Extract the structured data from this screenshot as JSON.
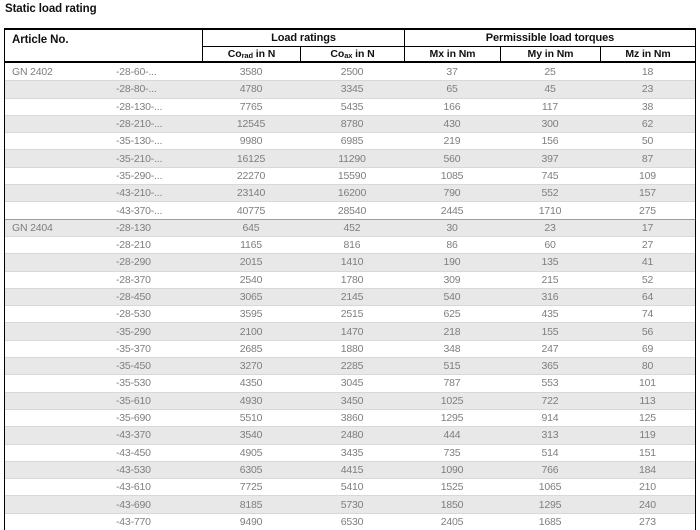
{
  "page_title": "Static load rating",
  "table": {
    "article_header": "Article No.",
    "groups": [
      {
        "label": "Load ratings",
        "span": 2
      },
      {
        "label": "Permissible load torques",
        "span": 3
      }
    ],
    "subcolumns": [
      {
        "base": "Co",
        "sub": "rad",
        "unit": "in N"
      },
      {
        "base": "Co",
        "sub": "ax",
        "unit": "in N"
      },
      {
        "base": "Mx",
        "sub": "",
        "unit": "in Nm"
      },
      {
        "base": "My",
        "sub": "",
        "unit": "in Nm"
      },
      {
        "base": "Mz",
        "sub": "",
        "unit": "in Nm"
      }
    ],
    "sections": [
      {
        "series": "GN 2402",
        "rows": [
          {
            "size": "-28-60-...",
            "values": [
              "3580",
              "2500",
              "37",
              "25",
              "18"
            ]
          },
          {
            "size": "-28-80-...",
            "values": [
              "4780",
              "3345",
              "65",
              "45",
              "23"
            ]
          },
          {
            "size": "-28-130-...",
            "values": [
              "7765",
              "5435",
              "166",
              "117",
              "38"
            ]
          },
          {
            "size": "-28-210-...",
            "values": [
              "12545",
              "8780",
              "430",
              "300",
              "62"
            ]
          },
          {
            "size": "-35-130-...",
            "values": [
              "9980",
              "6985",
              "219",
              "156",
              "50"
            ]
          },
          {
            "size": "-35-210-...",
            "values": [
              "16125",
              "11290",
              "560",
              "397",
              "87"
            ]
          },
          {
            "size": "-35-290-...",
            "values": [
              "22270",
              "15590",
              "1085",
              "745",
              "109"
            ]
          },
          {
            "size": "-43-210-...",
            "values": [
              "23140",
              "16200",
              "790",
              "552",
              "157"
            ]
          },
          {
            "size": "-43-370-...",
            "values": [
              "40775",
              "28540",
              "2445",
              "1710",
              "275"
            ]
          }
        ]
      },
      {
        "series": "GN 2404",
        "rows": [
          {
            "size": "-28-130",
            "values": [
              "645",
              "452",
              "30",
              "23",
              "17"
            ]
          },
          {
            "size": "-28-210",
            "values": [
              "1165",
              "816",
              "86",
              "60",
              "27"
            ]
          },
          {
            "size": "-28-290",
            "values": [
              "2015",
              "1410",
              "190",
              "135",
              "41"
            ]
          },
          {
            "size": "-28-370",
            "values": [
              "2540",
              "1780",
              "309",
              "215",
              "52"
            ]
          },
          {
            "size": "-28-450",
            "values": [
              "3065",
              "2145",
              "540",
              "316",
              "64"
            ]
          },
          {
            "size": "-28-530",
            "values": [
              "3595",
              "2515",
              "625",
              "435",
              "74"
            ]
          },
          {
            "size": "-35-290",
            "values": [
              "2100",
              "1470",
              "218",
              "155",
              "56"
            ]
          },
          {
            "size": "-35-370",
            "values": [
              "2685",
              "1880",
              "348",
              "247",
              "69"
            ]
          },
          {
            "size": "-35-450",
            "values": [
              "3270",
              "2285",
              "515",
              "365",
              "80"
            ]
          },
          {
            "size": "-35-530",
            "values": [
              "4350",
              "3045",
              "787",
              "553",
              "101"
            ]
          },
          {
            "size": "-35-610",
            "values": [
              "4930",
              "3450",
              "1025",
              "722",
              "113"
            ]
          },
          {
            "size": "-35-690",
            "values": [
              "5510",
              "3860",
              "1295",
              "914",
              "125"
            ]
          },
          {
            "size": "-43-370",
            "values": [
              "3540",
              "2480",
              "444",
              "313",
              "119"
            ]
          },
          {
            "size": "-43-450",
            "values": [
              "4905",
              "3435",
              "735",
              "514",
              "151"
            ]
          },
          {
            "size": "-43-530",
            "values": [
              "6305",
              "4415",
              "1090",
              "766",
              "184"
            ]
          },
          {
            "size": "-43-610",
            "values": [
              "7725",
              "5410",
              "1525",
              "1065",
              "210"
            ]
          },
          {
            "size": "-43-690",
            "values": [
              "8185",
              "5730",
              "1850",
              "1295",
              "240"
            ]
          },
          {
            "size": "-43-770",
            "values": [
              "9490",
              "6530",
              "2405",
              "1685",
              "273"
            ]
          }
        ]
      }
    ],
    "colors": {
      "row_alt_bg": "#e8e8e8",
      "data_text": "#7e7e7e",
      "header_text": "#111111",
      "border": "#000000",
      "row_separator": "#d8d8d8",
      "section_separator": "#9c9c9c"
    }
  }
}
